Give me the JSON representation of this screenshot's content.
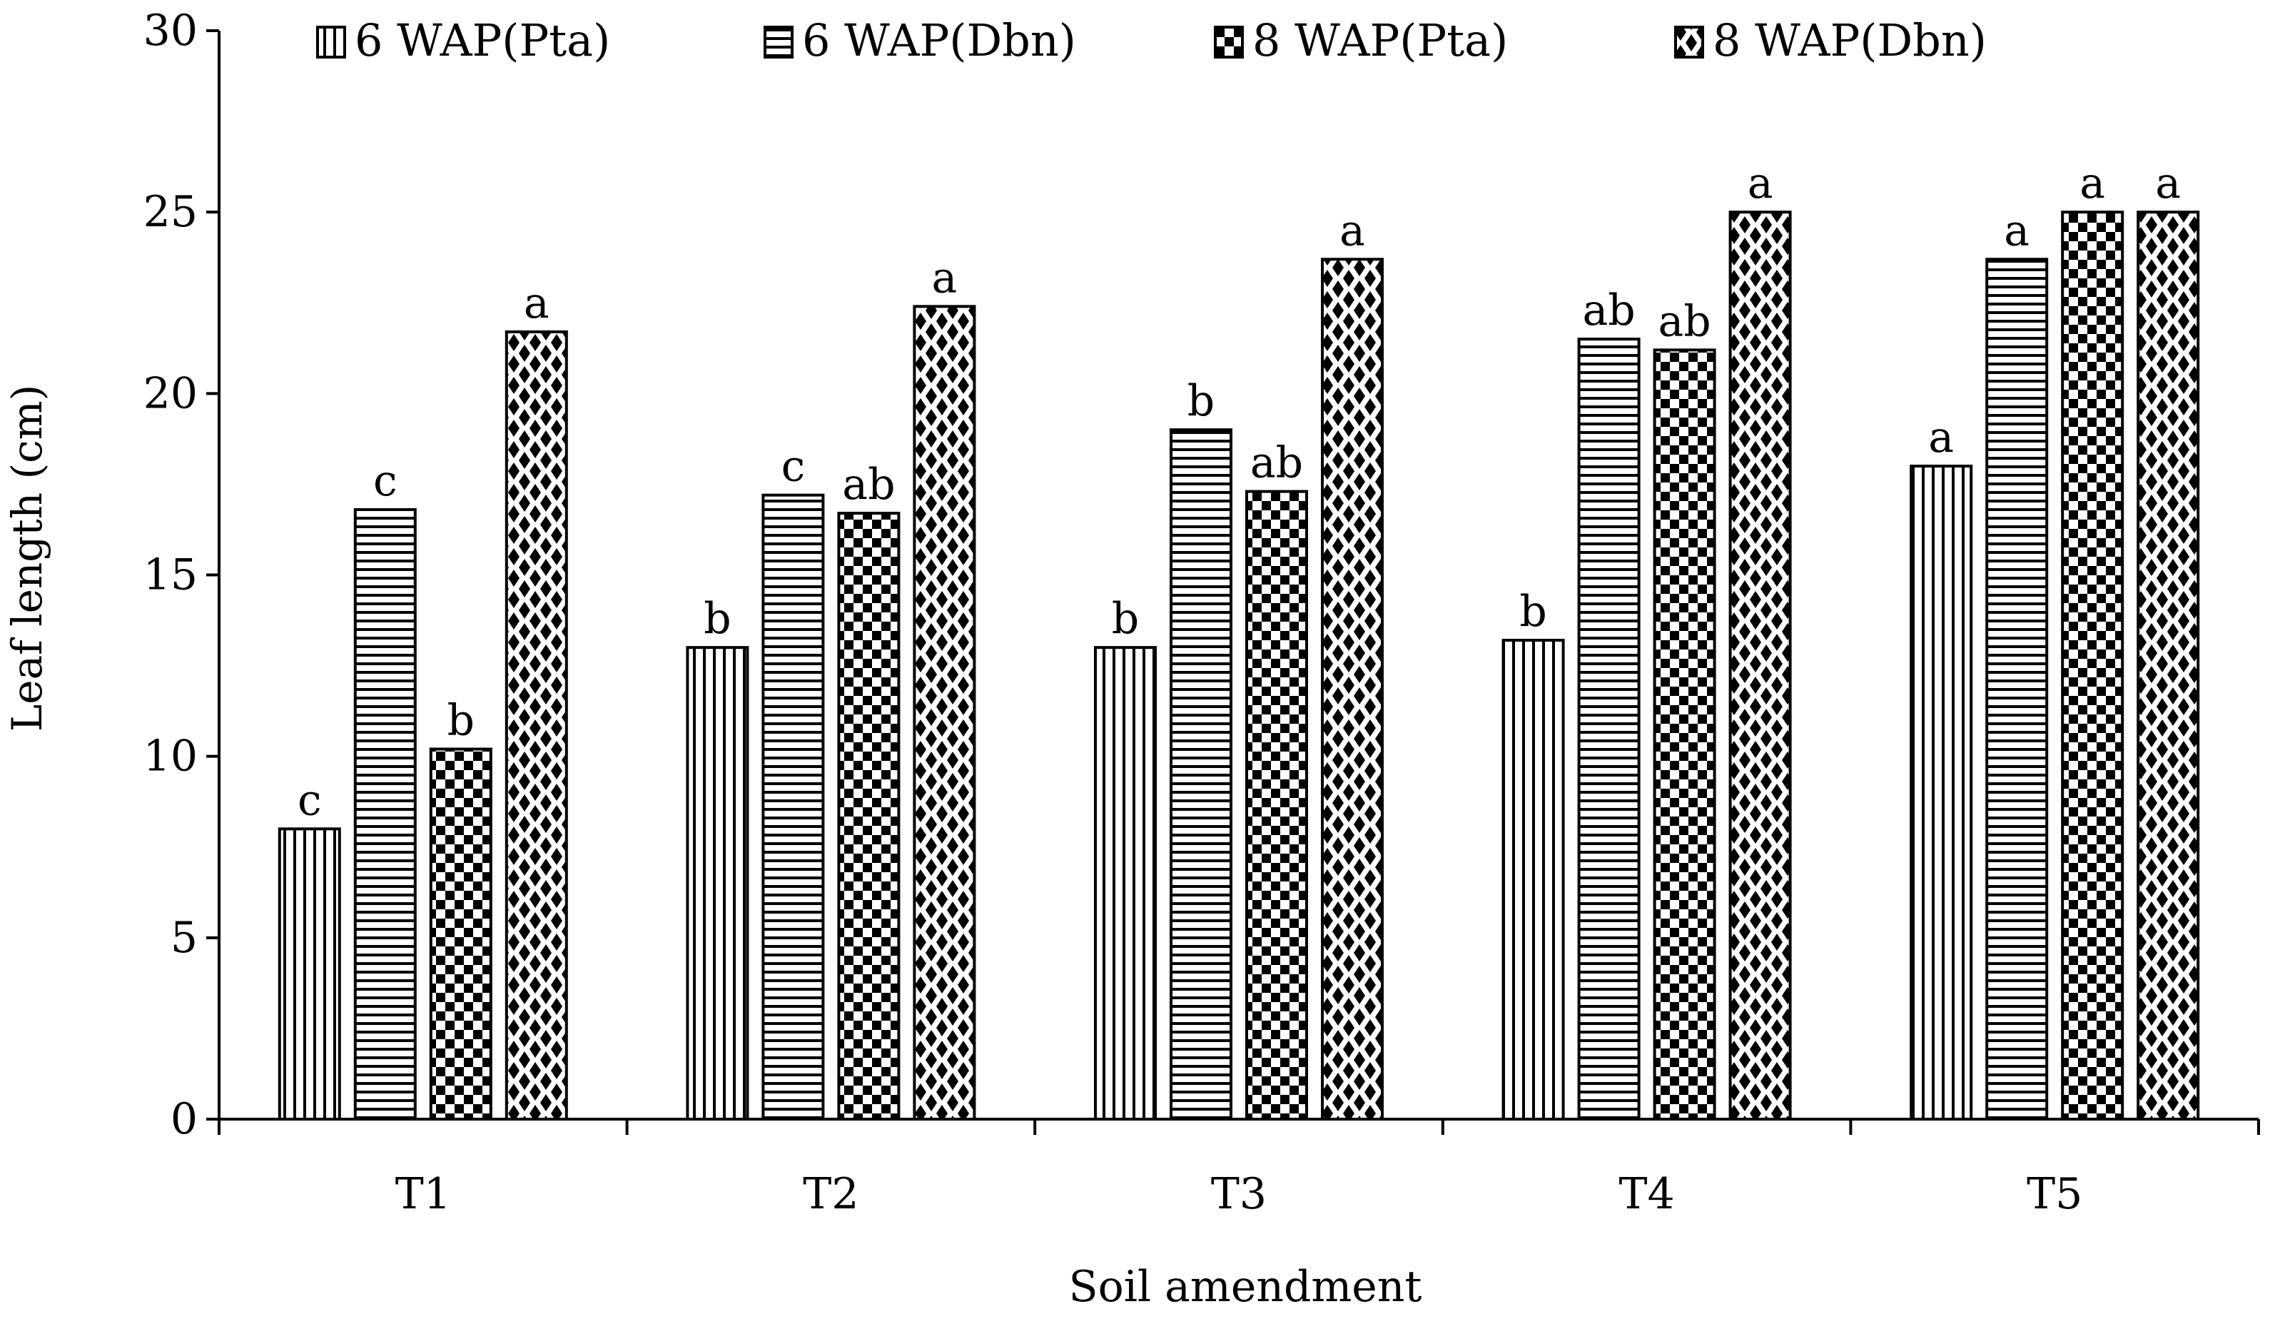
{
  "chart_data": {
    "type": "bar",
    "xlabel": "Soil amendment",
    "ylabel": "Leaf length (cm)",
    "ylim": [
      0,
      30
    ],
    "yticks": [
      "0",
      "5",
      "10",
      "15",
      "20",
      "25",
      "30"
    ],
    "categories": [
      "T1",
      "T2",
      "T3",
      "T4",
      "T5"
    ],
    "grid": false,
    "legend_position": "top",
    "series": [
      {
        "name": "6 WAP(Pta)",
        "pattern": "vertical-lines",
        "values": [
          8.0,
          13.0,
          13.0,
          13.2,
          18.0
        ],
        "labels": [
          "c",
          "b",
          "b",
          "b",
          "a"
        ]
      },
      {
        "name": "6 WAP(Dbn)",
        "pattern": "horizontal-lines",
        "values": [
          16.8,
          17.2,
          19.0,
          21.5,
          23.7
        ],
        "labels": [
          "c",
          "c",
          "b",
          "ab",
          "a"
        ]
      },
      {
        "name": "8 WAP(Pta)",
        "pattern": "checkerboard",
        "values": [
          10.2,
          16.7,
          17.3,
          21.2,
          25.0
        ],
        "labels": [
          "b",
          "ab",
          "ab",
          "ab",
          "a"
        ]
      },
      {
        "name": "8 WAP(Dbn)",
        "pattern": "diamond-dots",
        "values": [
          21.7,
          22.4,
          23.7,
          25.0,
          25.0
        ],
        "labels": [
          "a",
          "a",
          "a",
          "a",
          "a"
        ]
      }
    ],
    "colors": {
      "ink": "#000000",
      "background": "#ffffff"
    }
  }
}
